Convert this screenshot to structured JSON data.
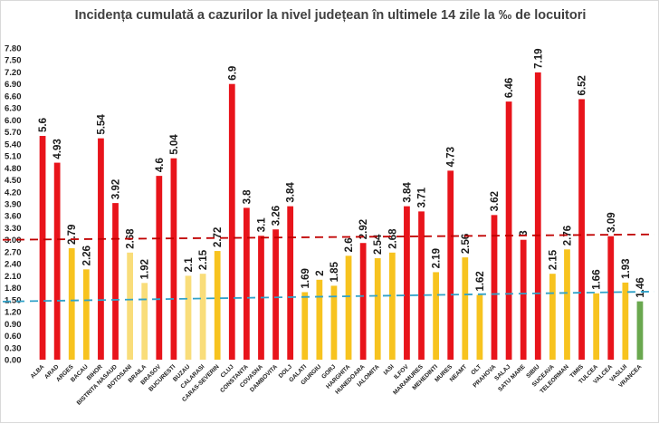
{
  "chart_data": {
    "type": "bar",
    "title": "Incidența cumulată a cazurilor la nivel județean în ultimele 14 zile la ‰ de locuitori",
    "xlabel": "",
    "ylabel": "",
    "ylim": [
      0,
      7.8
    ],
    "ytick_step": 0.3,
    "grid": false,
    "legend": "none",
    "categories": [
      "ALBA",
      "ARAD",
      "ARGES",
      "BACAU",
      "BIHOR",
      "BISTRITA NASAUD",
      "BOTOSANI",
      "BRAILA",
      "BRASOV",
      "BUCURESTI",
      "BUZAU",
      "CALARASI",
      "CARAS-SEVERIN",
      "CLUJ",
      "CONSTANTA",
      "COVASNA",
      "DAMBOVITA",
      "DOLJ",
      "GALATI",
      "GIURGIU",
      "GORJ",
      "HARGHITA",
      "HUNEDOARA",
      "IALOMITA",
      "IASI",
      "ILFOV",
      "MARAMURES",
      "MEHEDINTI",
      "MURES",
      "NEAMT",
      "OLT",
      "PRAHOVA",
      "SALAJ",
      "SATU MARE",
      "SIBIU",
      "SUCEAVA",
      "TELEORMAN",
      "TIMIS",
      "TULCEA",
      "VALCEA",
      "VASLUI",
      "VRANCEA"
    ],
    "values": [
      5.6,
      4.93,
      2.79,
      2.26,
      5.54,
      3.92,
      2.68,
      1.92,
      4.6,
      5.04,
      2.1,
      2.15,
      2.72,
      6.9,
      3.8,
      3.1,
      3.26,
      3.84,
      1.69,
      2,
      1.85,
      2.6,
      2.92,
      2.54,
      2.68,
      3.84,
      3.71,
      2.19,
      4.73,
      2.56,
      1.62,
      3.62,
      6.46,
      3,
      7.19,
      2.15,
      2.76,
      6.52,
      1.66,
      3.09,
      1.93,
      1.46
    ],
    "value_labels": [
      "5.6",
      "4.93",
      "2.79",
      "2.26",
      "5.54",
      "3.92",
      "2.68",
      "1.92",
      "4.6",
      "5.04",
      "2.1",
      "2.15",
      "2.72",
      "6.9",
      "3.8",
      "3.1",
      "3.26",
      "3.84",
      "1.69",
      "2",
      "1.85",
      "2.6",
      "2.92",
      "2.54",
      "2.68",
      "3.84",
      "3.71",
      "2.19",
      "4.73",
      "2.56",
      "1.62",
      "3.62",
      "6.46",
      "3",
      "7.19",
      "2.15",
      "2.76",
      "6.52",
      "1.66",
      "3.09",
      "1.93",
      "1.46"
    ],
    "bar_colors": [
      "#e8141b",
      "#e8141b",
      "#f7c31f",
      "#f7c31f",
      "#e8141b",
      "#e8141b",
      "#f9dd7a",
      "#f9dd7a",
      "#e8141b",
      "#e8141b",
      "#f9dd7a",
      "#f9dd7a",
      "#f7c31f",
      "#e8141b",
      "#e8141b",
      "#e8141b",
      "#e8141b",
      "#e8141b",
      "#f7c31f",
      "#f7c31f",
      "#f7c31f",
      "#f7c31f",
      "#e8141b",
      "#f7c31f",
      "#f7c31f",
      "#e8141b",
      "#e8141b",
      "#f7c31f",
      "#e8141b",
      "#f7c31f",
      "#f7c31f",
      "#e8141b",
      "#e8141b",
      "#e8141b",
      "#e8141b",
      "#f7c31f",
      "#f7c31f",
      "#e8141b",
      "#f7c31f",
      "#e8141b",
      "#f7c31f",
      "#6aa84f"
    ],
    "reference_lines": [
      {
        "kind": "threshold",
        "value": 3.0,
        "color": "#c00000",
        "style": "dashed"
      },
      {
        "kind": "threshold",
        "value": 1.5,
        "color": "#31a2c9",
        "style": "dashed"
      }
    ]
  }
}
